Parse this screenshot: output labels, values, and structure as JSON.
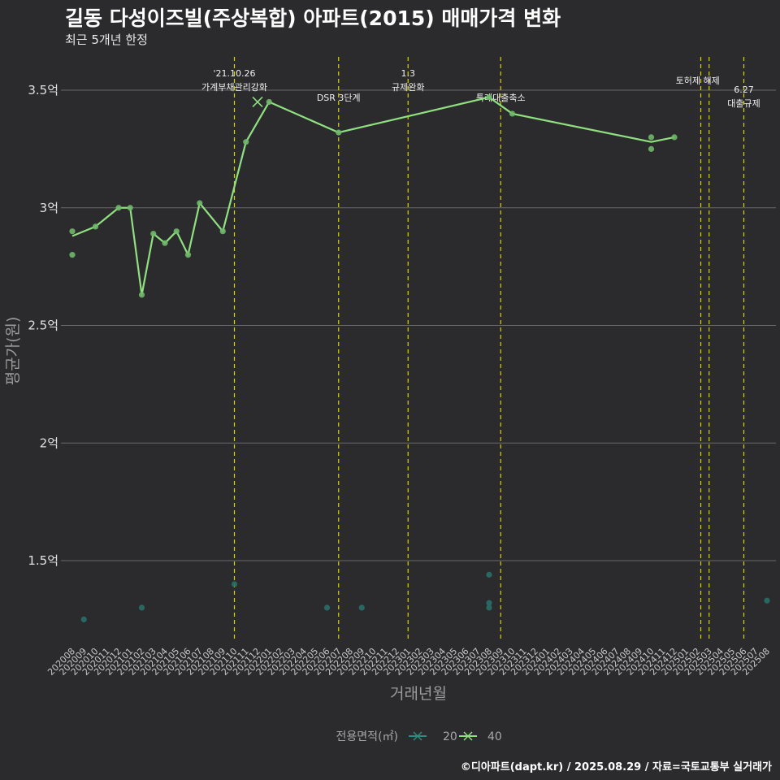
{
  "title": "길동 다성이즈빌(주상복합) 아파트(2015) 매매가격 변화",
  "subtitle": "최근 5개년 한정",
  "caption": "©디아파트(dapt.kr) / 2025.08.29 / 자료=국토교통부 실거래가",
  "chart_data": {
    "type": "line",
    "xlabel": "거래년월",
    "ylabel": "평균가(원)",
    "ylim": [
      1.15,
      3.65
    ],
    "yticks": [
      {
        "value": 1.5,
        "label": "1.5억"
      },
      {
        "value": 2.0,
        "label": "2억"
      },
      {
        "value": 2.5,
        "label": "2.5억"
      },
      {
        "value": 3.0,
        "label": "3억"
      },
      {
        "value": 3.5,
        "label": "3.5억"
      }
    ],
    "x_categories": [
      "202008",
      "202009",
      "202010",
      "202011",
      "202012",
      "202101",
      "202102",
      "202103",
      "202104",
      "202105",
      "202106",
      "202107",
      "202108",
      "202109",
      "202110",
      "202111",
      "202112",
      "202201",
      "202202",
      "202203",
      "202204",
      "202205",
      "202206",
      "202207",
      "202208",
      "202209",
      "202210",
      "202211",
      "202212",
      "202301",
      "202302",
      "202303",
      "202304",
      "202305",
      "202306",
      "202307",
      "202308",
      "202309",
      "202310",
      "202311",
      "202312",
      "202401",
      "202402",
      "202403",
      "202404",
      "202405",
      "202406",
      "202407",
      "202408",
      "202409",
      "202410",
      "202411",
      "202412",
      "202501",
      "202502",
      "202503",
      "202504",
      "202505",
      "202506",
      "202507",
      "202508"
    ],
    "legend": {
      "title": "전용면적(㎡)",
      "position": "bottom",
      "entries": [
        {
          "label": "20",
          "color": "#2e8b7f"
        },
        {
          "label": "40",
          "color": "#90e080"
        }
      ]
    },
    "series": [
      {
        "name": "40",
        "color": "#90e080",
        "line": [
          [
            "202008",
            2.88
          ],
          [
            "202010",
            2.92
          ],
          [
            "202012",
            3.0
          ],
          [
            "202101",
            3.0
          ],
          [
            "202102",
            2.63
          ],
          [
            "202103",
            2.89
          ],
          [
            "202104",
            2.85
          ],
          [
            "202105",
            2.9
          ],
          [
            "202106",
            2.8
          ],
          [
            "202107",
            3.02
          ],
          [
            "202109",
            2.9
          ],
          [
            "202111",
            3.28
          ],
          [
            "202201",
            3.45
          ],
          [
            "202207",
            3.32
          ],
          [
            "202308",
            3.47
          ],
          [
            "202310",
            3.4
          ],
          [
            "202410",
            3.28
          ],
          [
            "202412",
            3.3
          ]
        ],
        "points": [
          [
            "202008",
            2.9
          ],
          [
            "202008",
            2.8
          ],
          [
            "202010",
            2.92
          ],
          [
            "202012",
            3.0
          ],
          [
            "202101",
            3.0
          ],
          [
            "202102",
            2.63
          ],
          [
            "202103",
            2.89
          ],
          [
            "202104",
            2.85
          ],
          [
            "202105",
            2.9
          ],
          [
            "202106",
            2.8
          ],
          [
            "202107",
            3.02
          ],
          [
            "202109",
            2.9
          ],
          [
            "202111",
            3.28
          ],
          [
            "202201",
            3.45
          ],
          [
            "202207",
            3.32
          ],
          [
            "202308",
            3.47
          ],
          [
            "202310",
            3.4
          ],
          [
            "202410",
            3.3
          ],
          [
            "202410",
            3.25
          ],
          [
            "202412",
            3.3
          ]
        ],
        "cross_marker": [
          "202112",
          3.45
        ]
      },
      {
        "name": "20",
        "color": "#2e8b7f",
        "points": [
          [
            "202009",
            1.25
          ],
          [
            "202102",
            1.3
          ],
          [
            "202110",
            1.4
          ],
          [
            "202206",
            1.3
          ],
          [
            "202209",
            1.3
          ],
          [
            "202308",
            1.44
          ],
          [
            "202308",
            1.32
          ],
          [
            "202308",
            1.3
          ],
          [
            "202508",
            1.33
          ]
        ]
      }
    ],
    "events": [
      {
        "x": "202110",
        "lines": [
          "'21.10.26",
          "가계부채관리강화"
        ]
      },
      {
        "x": "202207",
        "lines": [
          "DSR 3단계"
        ]
      },
      {
        "x": "202301",
        "lines": [
          "1.3",
          "규제완화"
        ]
      },
      {
        "x": "202309",
        "lines": [
          "특례대출축소"
        ]
      },
      {
        "x": "202502",
        "lines": [
          ""
        ]
      },
      {
        "x": "202503",
        "lines": [
          "토허제 해제"
        ]
      },
      {
        "x": "202506",
        "lines": [
          "6.27",
          "대출규제"
        ]
      }
    ]
  }
}
